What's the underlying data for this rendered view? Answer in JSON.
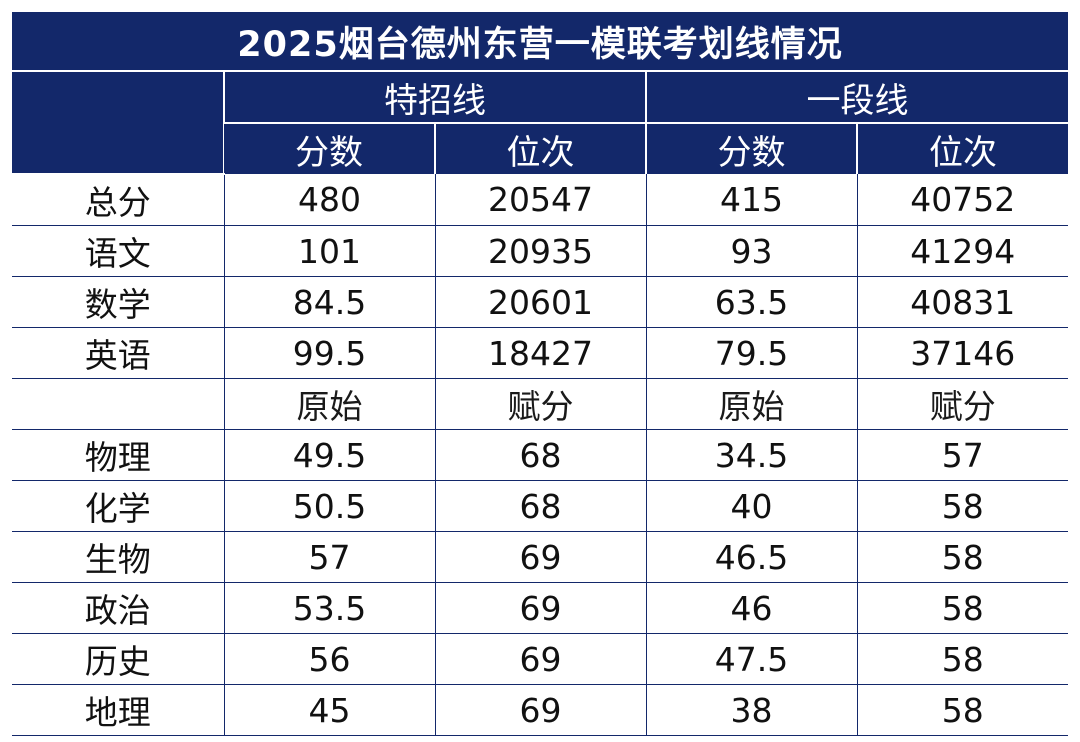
{
  "title": "2025烟台德州东营一模联考划线情况",
  "groups": [
    "特招线",
    "一段线"
  ],
  "sub_headers": [
    "分数",
    "位次",
    "分数",
    "位次"
  ],
  "main_rows": [
    {
      "label": "总分",
      "values": [
        "480",
        "20547",
        "415",
        "40752"
      ]
    },
    {
      "label": "语文",
      "values": [
        "101",
        "20935",
        "93",
        "41294"
      ]
    },
    {
      "label": "数学",
      "values": [
        "84.5",
        "20601",
        "63.5",
        "40831"
      ]
    },
    {
      "label": "英语",
      "values": [
        "99.5",
        "18427",
        "79.5",
        "37146"
      ]
    }
  ],
  "elective_headers": [
    "原始",
    "赋分",
    "原始",
    "赋分"
  ],
  "elective_rows": [
    {
      "label": "物理",
      "values": [
        "49.5",
        "68",
        "34.5",
        "57"
      ]
    },
    {
      "label": "化学",
      "values": [
        "50.5",
        "68",
        "40",
        "58"
      ]
    },
    {
      "label": "生物",
      "values": [
        "57",
        "69",
        "46.5",
        "58"
      ]
    },
    {
      "label": "政治",
      "values": [
        "53.5",
        "69",
        "46",
        "58"
      ]
    },
    {
      "label": "历史",
      "values": [
        "56",
        "69",
        "47.5",
        "58"
      ]
    },
    {
      "label": "地理",
      "values": [
        "45",
        "69",
        "38",
        "58"
      ]
    }
  ]
}
